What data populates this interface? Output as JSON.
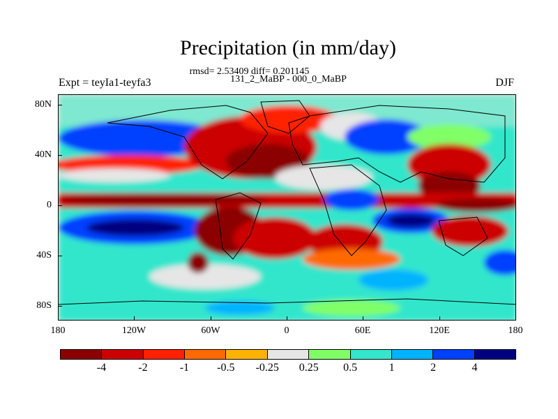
{
  "title": "Precipitation (in mm/day)",
  "stats": "rmsd= 2.53409 diff= 0.201145",
  "subtitle": "131_2_MaBP - 000_0_MaBP",
  "left_label": "Expt = teyIa1-teyfa3",
  "right_label": "DJF",
  "chart_data": {
    "type": "heatmap",
    "title": "Precipitation (in mm/day)",
    "x_tick_labels": [
      "180",
      "120W",
      "60W",
      "0",
      "60E",
      "120E",
      "180"
    ],
    "y_tick_labels": [
      "80N",
      "40N",
      "0",
      "40S",
      "80S"
    ],
    "x_ticks_deg": [
      -180,
      -120,
      -60,
      0,
      60,
      120,
      180
    ],
    "y_ticks_deg": [
      80,
      40,
      0,
      -40,
      -80
    ],
    "xlim": [
      -180,
      180
    ],
    "ylim": [
      -90,
      90
    ],
    "colorbar_labels": [
      "-4",
      "-2",
      "-1",
      "-0.5",
      "-0.25",
      "0.25",
      "0.5",
      "1",
      "2",
      "4"
    ],
    "colorbar_colors": [
      "#8b0000",
      "#cc0000",
      "#ff2000",
      "#ff6a00",
      "#ffb300",
      "#e6e6e6",
      "#80ff66",
      "#33e6cc",
      "#00b3ff",
      "#0040ff",
      "#000080"
    ]
  }
}
